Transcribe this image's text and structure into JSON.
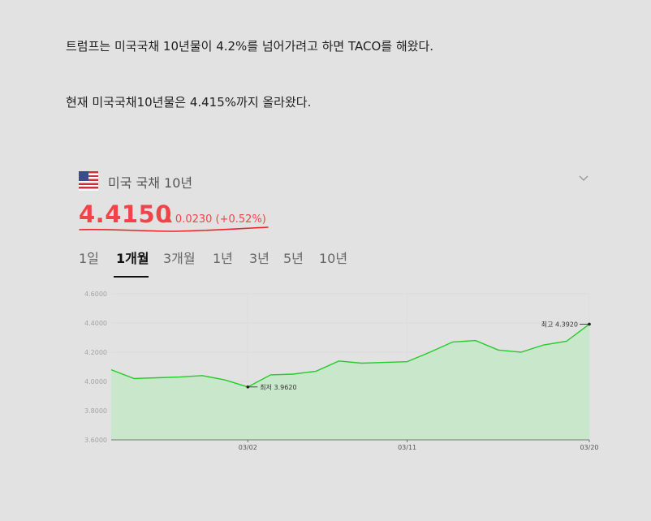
{
  "article": {
    "paragraph1": "트럼프는 미국국채 10년물이 4.2%를 넘어가려고 하면 TACO를 해왔다.",
    "paragraph2": "현재 미국국채10년물은 4.415%까지 올라왔다."
  },
  "quote": {
    "flag_icon": "us-flag-icon",
    "name": "미국 국채 10년",
    "price": "4.4150",
    "change": "0.0230 (+0.52%)",
    "change_arrow": "▲",
    "up_color": "#f0434a",
    "annotation_color": "#e8232a"
  },
  "tabs": [
    {
      "label": "1일"
    },
    {
      "label": "1개월",
      "active": true
    },
    {
      "label": "3개월"
    },
    {
      "label": "1년"
    },
    {
      "label": "3년"
    },
    {
      "label": "5년"
    },
    {
      "label": "10년"
    }
  ],
  "chart_data": {
    "type": "area",
    "title": "",
    "xlabel": "",
    "ylabel": "",
    "ylim": [
      3.6,
      4.6
    ],
    "yticks": [
      "4.6000",
      "4.4000",
      "4.2000",
      "4.0000",
      "3.8000",
      "3.6000"
    ],
    "xticks": [
      "03/02",
      "03/11",
      "03/20"
    ],
    "line_color": "#22cc2a",
    "fill_color": "#c9e7cb",
    "grid": true,
    "values": [
      4.08,
      4.02,
      4.025,
      4.03,
      4.04,
      4.01,
      3.962,
      4.045,
      4.05,
      4.07,
      4.14,
      4.125,
      4.13,
      4.135,
      4.2,
      4.27,
      4.28,
      4.215,
      4.2,
      4.25,
      4.275,
      4.392
    ],
    "annotations": [
      {
        "label": "최저 3.9620",
        "value": 3.962
      },
      {
        "label": "최고 4.3920",
        "value": 4.392
      }
    ]
  }
}
